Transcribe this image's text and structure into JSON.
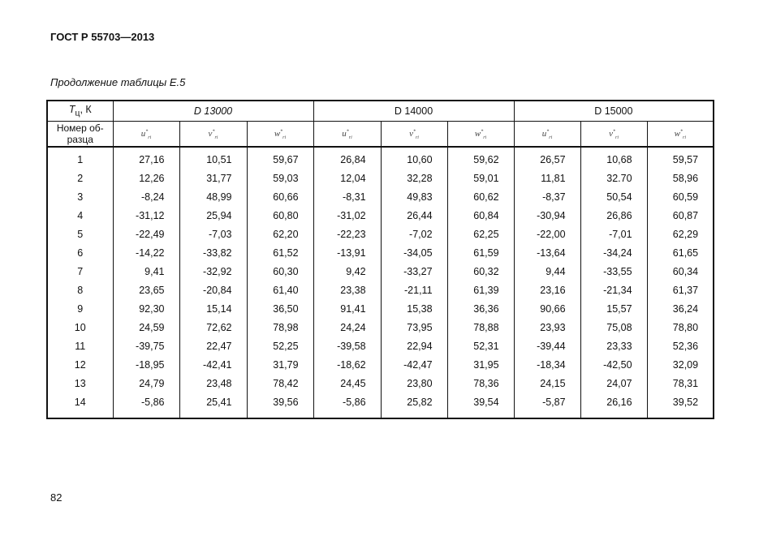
{
  "header": {
    "title": "ГОСТ Р 55703—2013"
  },
  "caption": "Продолжение таблицы Е.5",
  "table": {
    "corner": {
      "symbol": "T",
      "sub": "ц",
      "rest": ", К"
    },
    "groups": [
      "D 13000",
      "D 14000",
      "D 15000"
    ],
    "row_header": "Номер об-разца",
    "subcols": [
      {
        "base": "u",
        "sup": "*",
        "sub": "ri"
      },
      {
        "base": "v",
        "sup": "*",
        "sub": "ri"
      },
      {
        "base": "w",
        "sup": "*",
        "sub": "ri"
      },
      {
        "base": "u",
        "sup": "*",
        "sub": "ri"
      },
      {
        "base": "v",
        "sup": "*",
        "sub": "ri"
      },
      {
        "base": "w",
        "sup": "*",
        "sub": "ri"
      },
      {
        "base": "u",
        "sup": "*",
        "sub": "ri"
      },
      {
        "base": "v",
        "sup": "*",
        "sub": "ri"
      },
      {
        "base": "w",
        "sup": "*",
        "sub": "ri"
      }
    ],
    "rows": [
      [
        "1",
        "27,16",
        "10,51",
        "59,67",
        "26,84",
        "10,60",
        "59,62",
        "26,57",
        "10,68",
        "59,57"
      ],
      [
        "2",
        "12,26",
        "31,77",
        "59,03",
        "12,04",
        "32,28",
        "59,01",
        "11,81",
        "32.70",
        "58,96"
      ],
      [
        "3",
        "-8,24",
        "48,99",
        "60,66",
        "-8,31",
        "49,83",
        "60,62",
        "-8,37",
        "50,54",
        "60,59"
      ],
      [
        "4",
        "-31,12",
        "25,94",
        "60,80",
        "-31,02",
        "26,44",
        "60,84",
        "-30,94",
        "26,86",
        "60,87"
      ],
      [
        "5",
        "-22,49",
        "-7,03",
        "62,20",
        "-22,23",
        "-7,02",
        "62,25",
        "-22,00",
        "-7,01",
        "62,29"
      ],
      [
        "6",
        "-14,22",
        "-33,82",
        "61,52",
        "-13,91",
        "-34,05",
        "61,59",
        "-13,64",
        "-34,24",
        "61,65"
      ],
      [
        "7",
        "9,41",
        "-32,92",
        "60,30",
        "9,42",
        "-33,27",
        "60,32",
        "9,44",
        "-33,55",
        "60,34"
      ],
      [
        "8",
        "23,65",
        "-20,84",
        "61,40",
        "23,38",
        "-21,11",
        "61,39",
        "23,16",
        "-21,34",
        "61,37"
      ],
      [
        "9",
        "92,30",
        "15,14",
        "36,50",
        "91,41",
        "15,38",
        "36,36",
        "90,66",
        "15,57",
        "36,24"
      ],
      [
        "10",
        "24,59",
        "72,62",
        "78,98",
        "24,24",
        "73,95",
        "78,88",
        "23,93",
        "75,08",
        "78,80"
      ],
      [
        "11",
        "-39,75",
        "22,47",
        "52,25",
        "-39,58",
        "22,94",
        "52,31",
        "-39,44",
        "23,33",
        "52,36"
      ],
      [
        "12",
        "-18,95",
        "-42,41",
        "31,79",
        "-18,62",
        "-42,47",
        "31,95",
        "-18,34",
        "-42,50",
        "32,09"
      ],
      [
        "13",
        "24,79",
        "23,48",
        "78,42",
        "24,45",
        "23,80",
        "78,36",
        "24,15",
        "24,07",
        "78,31"
      ],
      [
        "14",
        "-5,86",
        "25,41",
        "39,56",
        "-5,86",
        "25,82",
        "39,54",
        "-5,87",
        "26,16",
        "39,52"
      ]
    ]
  },
  "page_number": "82"
}
